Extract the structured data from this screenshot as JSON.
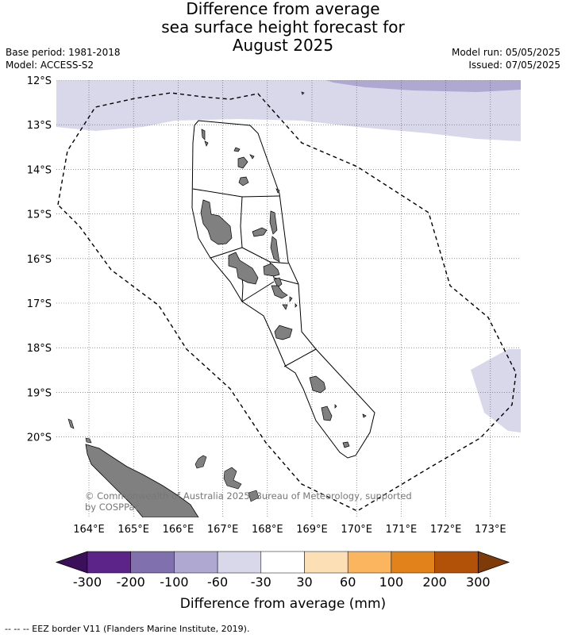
{
  "title": [
    "Difference from average",
    "sea surface height forecast for",
    "August 2025"
  ],
  "base_period": "Base period: 1981-2018",
  "model": "Model: ACCESS-S2",
  "model_run": "Model run: 05/05/2025",
  "issued": "Issued: 07/05/2025",
  "lat_labels": [
    "12°S",
    "13°S",
    "14°S",
    "15°S",
    "16°S",
    "17°S",
    "18°S",
    "19°S",
    "20°S"
  ],
  "lon_labels": [
    "164°E",
    "165°E",
    "166°E",
    "167°E",
    "168°E",
    "169°E",
    "170°E",
    "171°E",
    "172°E",
    "173°E"
  ],
  "copyright": [
    "© Commonwealth of Australia 2025, Bureau of Meteorology, supported",
    "by COSPPac"
  ],
  "colorbar": {
    "ticks": [
      "-300",
      "-200",
      "-100",
      "-60",
      "-30",
      "30",
      "60",
      "100",
      "200",
      "300"
    ],
    "colors": [
      "#3b0f5a",
      "#5c2389",
      "#8070ad",
      "#afa8d1",
      "#d8d8ea",
      "#ffffff",
      "#fddfb6",
      "#fbb55e",
      "#e2821b",
      "#b15208",
      "#7f3a0a"
    ],
    "title": "Difference from average (mm)"
  },
  "footer": "-- -- -- EEZ border V11 (Flanders Marine Institute, 2019)."
}
